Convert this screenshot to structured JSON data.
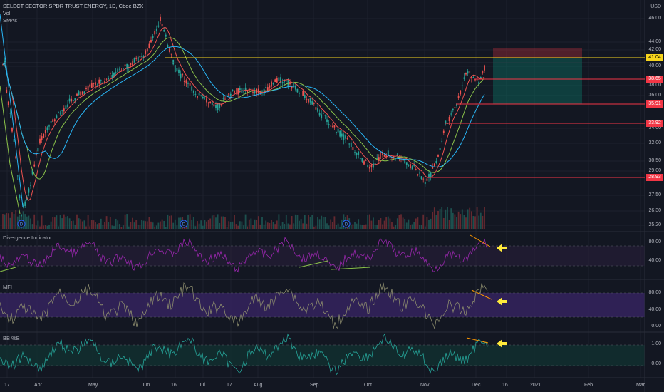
{
  "header": {
    "symbol_title": "SELECT SECTOR SPDR TRUST ENERGY, 1D, Cboe BZX",
    "vol_label": "Vol",
    "smas_label": "SMAs",
    "currency": "USD"
  },
  "price_axis": {
    "ticks": [
      "46.00",
      "44.00",
      "42.00",
      "40.00",
      "38.00",
      "36.00",
      "34.00",
      "32.00",
      "30.50",
      "29.00",
      "27.50",
      "26.30",
      "25.20"
    ]
  },
  "price_tags": [
    {
      "label": "41.04",
      "color": "#f7d51d",
      "text_color": "#000000"
    },
    {
      "label": "38.65",
      "color": "#f23645",
      "text_color": "#ffffff"
    },
    {
      "label": "35.91",
      "color": "#f23645",
      "text_color": "#ffffff"
    },
    {
      "label": "33.92",
      "color": "#f23645",
      "text_color": "#ffffff"
    },
    {
      "label": "28.93",
      "color": "#f23645",
      "text_color": "#ffffff"
    }
  ],
  "panes": [
    {
      "title": "Divergence Indicator",
      "ticks": [
        "80.00",
        "40.00"
      ],
      "line_color": "#9c27b0"
    },
    {
      "title": "MFI",
      "ticks": [
        "80.00",
        "40.00",
        "0.00"
      ],
      "line_color": "#8d8d6e"
    },
    {
      "title": "BB %B",
      "ticks": [
        "1.00",
        "0.00"
      ],
      "line_color": "#26a69a"
    }
  ],
  "time_axis": {
    "labels": [
      "17",
      "Apr",
      "May",
      "Jun",
      "16",
      "Jul",
      "17",
      "Aug",
      "Sep",
      "Oct",
      "Nov",
      "Dec",
      "16",
      "2021",
      "Feb",
      "Mar"
    ]
  },
  "event_markers": [
    "D",
    "D",
    "D",
    "D"
  ],
  "arrows": [
    "arrow-left-icon",
    "arrow-left-icon",
    "arrow-left-icon"
  ],
  "colors": {
    "background": "#131722",
    "up_candle": "#26a69a",
    "down_candle": "#ef5350",
    "sma_fast": "#ef5350",
    "sma_mid": "#8bc34a",
    "sma_slow": "#29b6f6",
    "resistance_line": "#f7d51d",
    "arrow": "#ffeb3b",
    "divergence_line": "#ff9800"
  }
}
